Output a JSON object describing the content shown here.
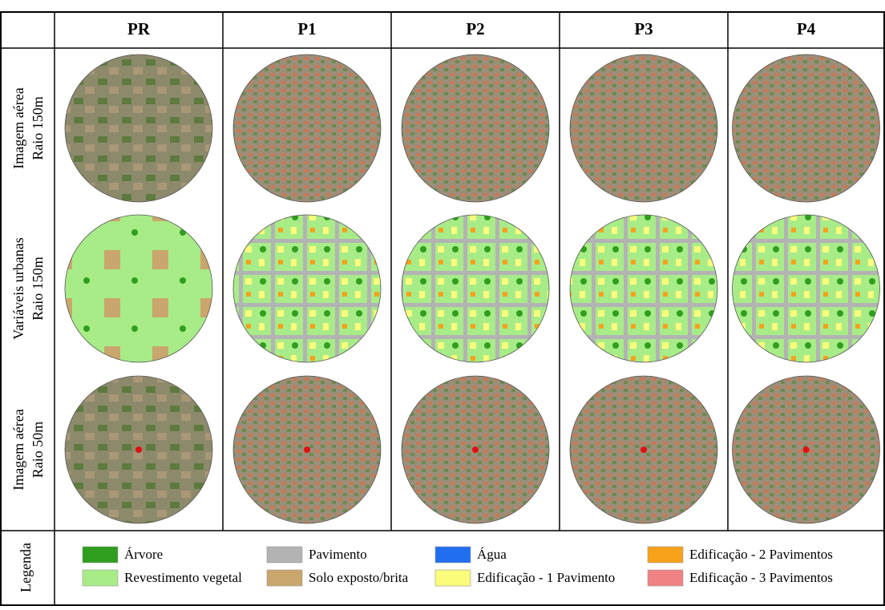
{
  "header": {
    "columns": [
      "PR",
      "P1",
      "P2",
      "P3",
      "P4"
    ]
  },
  "rows": [
    {
      "label": [
        "Imagem aérea",
        "Raio 150m"
      ]
    },
    {
      "label": [
        "Variáveis urbanas",
        "Raio 150m"
      ]
    },
    {
      "label": [
        "Imagem aérea",
        "Raio 50m"
      ]
    }
  ],
  "legend": {
    "title": "Legenda",
    "items": [
      {
        "label": "Árvore",
        "color": "#2f9e1e"
      },
      {
        "label": "Revestimento vegetal",
        "color": "#a8ec88"
      },
      {
        "label": "Pavimento",
        "color": "#b3b3b3"
      },
      {
        "label": "Solo exposto/brita",
        "color": "#c9a66b"
      },
      {
        "label": "Água",
        "color": "#1f6ff0"
      },
      {
        "label": "Edificação - 1 Pavimento",
        "color": "#fbfb7c"
      },
      {
        "label": "Edificação - 2 Pavimentos",
        "color": "#f8a21c"
      },
      {
        "label": "Edificação - 3 Pavimentos",
        "color": "#f08283"
      }
    ]
  }
}
